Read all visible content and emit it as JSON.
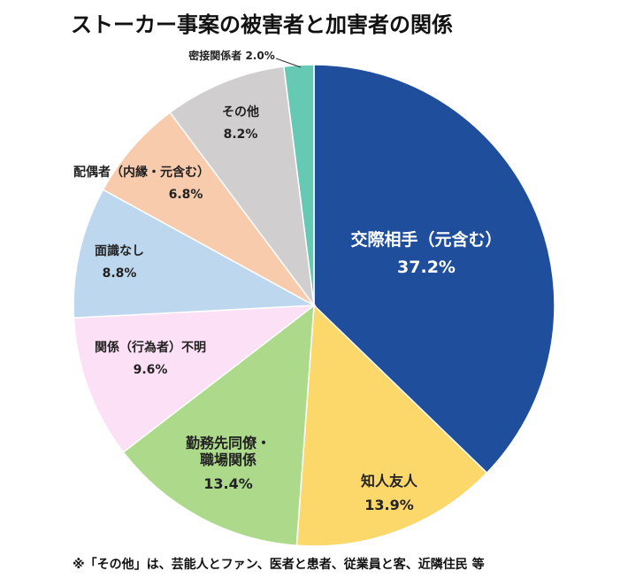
{
  "chart_data": {
    "type": "pie",
    "title": "ストーカー事案の被害者と加害者の関係",
    "categories": [
      "交際相手（元含む）",
      "知人友人",
      "勤務先同僚・職場関係",
      "関係（行為者）不明",
      "面識なし",
      "配偶者（内縁・元含む）",
      "その他",
      "密接関係者"
    ],
    "values": [
      37.2,
      13.9,
      13.4,
      9.6,
      8.8,
      6.8,
      8.2,
      2.0
    ],
    "value_labels": [
      "37.2%",
      "13.9%",
      "13.4%",
      "9.6%",
      "8.8%",
      "6.8%",
      "8.2%",
      "2.0%"
    ],
    "colors": [
      "#1f4e9c",
      "#fcd76a",
      "#acd98a",
      "#fce0f5",
      "#bdd7ee",
      "#f8cbad",
      "#d0cece",
      "#66c9b4"
    ],
    "note": "※「その他」は、芸能人とファン、医者と患者、従業員と客、近隣住民 等"
  }
}
